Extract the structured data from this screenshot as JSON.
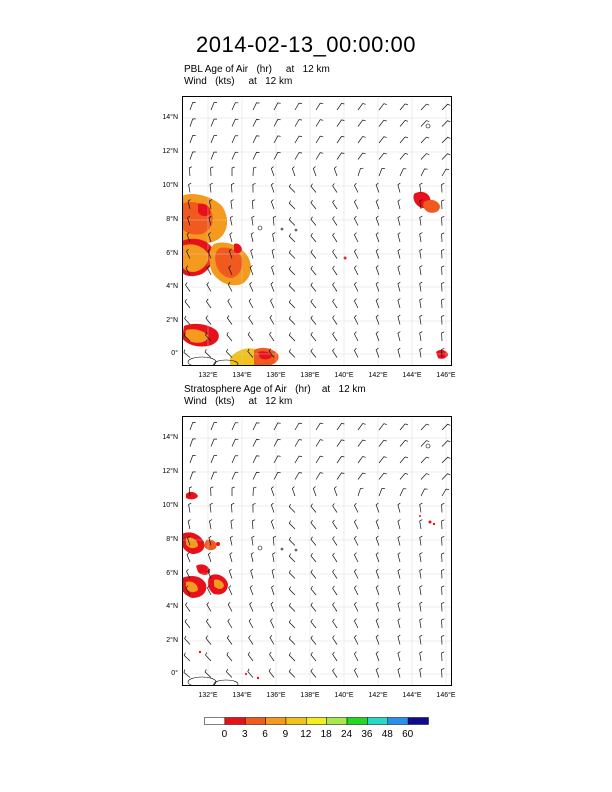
{
  "title": "2014-02-13_00:00:00",
  "panels": [
    {
      "title_line1": "PBL Age of Air   (hr)     at   12 km",
      "title_line2": "Wind   (kts)     at   12 km"
    },
    {
      "title_line1": "Stratosphere Age of Air   (hr)    at   12 km",
      "title_line2": "Wind   (kts)     at   12 km"
    }
  ],
  "map": {
    "lat_ticks": [
      "0°",
      "2°N",
      "4°N",
      "6°N",
      "8°N",
      "10°N",
      "12°N",
      "14°N"
    ],
    "lon_ticks": [
      "132°E",
      "134°E",
      "136°E",
      "138°E",
      "140°E",
      "142°E",
      "144°E",
      "146°E"
    ]
  },
  "colorbar": {
    "labels": [
      "0",
      "3",
      "6",
      "9",
      "12",
      "18",
      "24",
      "36",
      "48",
      "60"
    ],
    "colors": [
      "#ffffff",
      "#e8101a",
      "#f05a1e",
      "#f49a1e",
      "#f2c21c",
      "#f4ee1c",
      "#a8e84a",
      "#22d822",
      "#2ad8c8",
      "#2890e8",
      "#100a90"
    ]
  }
}
